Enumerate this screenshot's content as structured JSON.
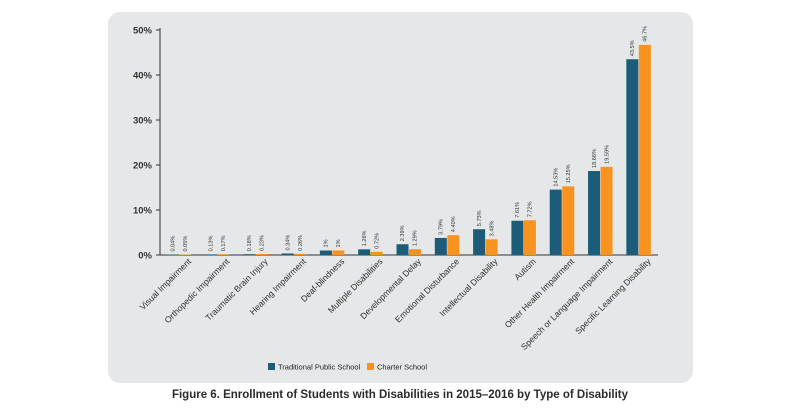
{
  "caption": "Figure 6. Enrollment of Students with Disabilities in 2015–2016 by Type of Disability",
  "colors": {
    "traditional": "#1c5c78",
    "charter": "#f7931e",
    "panel": "#e6e7e8"
  },
  "chart_data": {
    "type": "bar",
    "title": "",
    "xlabel": "",
    "ylabel": "",
    "ylim": [
      0,
      50
    ],
    "yticks": [
      "0%",
      "10%",
      "20%",
      "30%",
      "40%",
      "50%"
    ],
    "grid": false,
    "legend_placement": "bottom-center",
    "categories": [
      "Visual Impairment",
      "Orthopedic Impairment",
      "Traumatic Brain Injury",
      "Hearing Impairment",
      "Deaf-blindness",
      "Multiple Disabilities",
      "Developmental Delay",
      "Emotional Disturbance",
      "Intellectual Disability",
      "Autism",
      "Other Health Impairment",
      "Speech or Language Impairment",
      "Specific Learning Disability"
    ],
    "series": [
      {
        "name": "Traditional Public School",
        "values": [
          0.04,
          0.13,
          0.18,
          0.34,
          1,
          1.26,
          2.39,
          3.79,
          5.73,
          7.61,
          14.53,
          18.66,
          43.5
        ],
        "labels": [
          "0.04%",
          "0.13%",
          "0.18%",
          "0.34%",
          "1%",
          "1.26%",
          "2.39%",
          "3.79%",
          "5.73%",
          "7.61%",
          "14.53%",
          "18.66%",
          "43.5%"
        ]
      },
      {
        "name": "Charter School",
        "values": [
          0.05,
          0.17,
          0.23,
          0.26,
          1,
          0.72,
          1.29,
          4.4,
          3.48,
          7.72,
          15.25,
          19.59,
          46.7
        ],
        "labels": [
          "0.05%",
          "0.17%",
          "0.23%",
          "0.26%",
          "1%",
          "0.72%",
          "1.29%",
          "4.40%",
          "3.48%",
          "7.72%",
          "15.25%",
          "19.59%",
          "46.7%"
        ]
      }
    ]
  }
}
